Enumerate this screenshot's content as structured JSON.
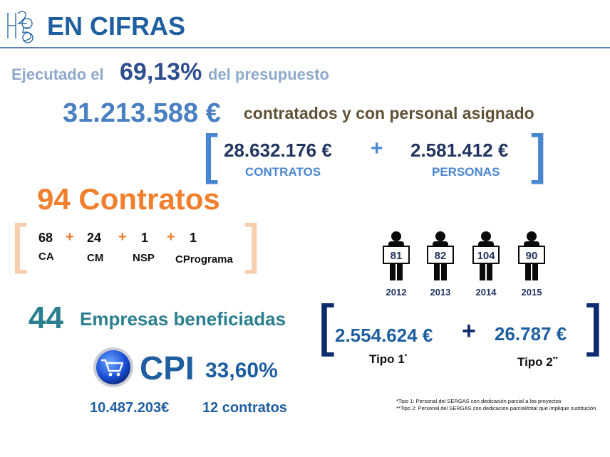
{
  "header": {
    "logo_text": "H2050",
    "title": "EN CIFRAS"
  },
  "budget": {
    "pre": "Ejecutado el",
    "percent": "69,13%",
    "post": "del presupuesto"
  },
  "total": {
    "amount": "31.213.588 €",
    "text": "contratados y con personal asignado"
  },
  "split": {
    "contracts_amount": "28.632.176 €",
    "contracts_label": "CONTRATOS",
    "plus": "+",
    "persons_amount": "2.581.412 €",
    "persons_label": "PERSONAS"
  },
  "contracts": {
    "title": "94  Contratos",
    "plus": "+",
    "items": [
      {
        "value": "68",
        "label": "CA"
      },
      {
        "value": "24",
        "label": "CM"
      },
      {
        "value": "1",
        "label": "NSP"
      },
      {
        "value": "1",
        "label": "CPrograma"
      }
    ]
  },
  "persons_chart": {
    "people": [
      {
        "count": "81",
        "year": "2012"
      },
      {
        "count": "82",
        "year": "2013"
      },
      {
        "count": "104",
        "year": "2014"
      },
      {
        "count": "90",
        "year": "2015"
      }
    ]
  },
  "companies": {
    "count": "44",
    "text": "Empresas beneficiadas"
  },
  "cpi": {
    "label": "CPI",
    "percent": "33,60%",
    "amount": "10.487.203€",
    "contracts": "12 contratos"
  },
  "types": {
    "tipo1_amount": "2.554.624 €",
    "tipo1_label": "Tipo 1",
    "tipo1_mark": "*",
    "plus": "+",
    "tipo2_amount": "26.787 €",
    "tipo2_label": "Tipo 2",
    "tipo2_mark": "**"
  },
  "footnotes": {
    "note1": "*Tipo 1: Personal del SERGAS con dedicación parcial a los proyectos",
    "note2": "**Tipo 2: Personal del SERGAS con dedicación parcial/total que implique sustitución"
  },
  "colors": {
    "navy": "#1f5fa0",
    "orange": "#f07f2e",
    "teal": "#2b7f8f",
    "dark_navy": "#0d2b6e"
  }
}
